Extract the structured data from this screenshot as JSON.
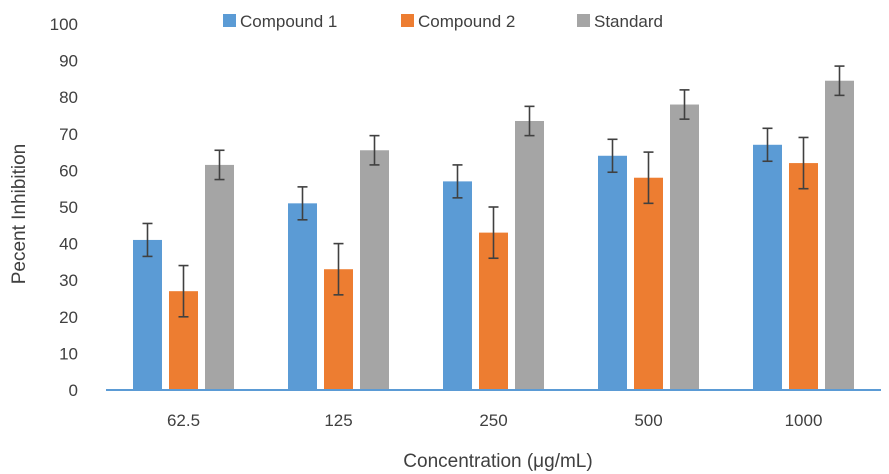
{
  "chart_data": {
    "type": "bar",
    "title": "",
    "xlabel": "Concentration (μg/mL)",
    "ylabel": "Pecent Inhibition",
    "categories": [
      "62.5",
      "125",
      "250",
      "500",
      "1000"
    ],
    "ylim": [
      0,
      100
    ],
    "yticks": [
      0,
      10,
      20,
      30,
      40,
      50,
      60,
      70,
      80,
      90,
      100
    ],
    "grid": false,
    "legend_position": "top",
    "error_bars": true,
    "series": [
      {
        "name": "Compound 1",
        "color": "#5B9BD5",
        "values": [
          41,
          51,
          57,
          64,
          67
        ],
        "errors": [
          4.5,
          4.5,
          4.5,
          4.5,
          4.5
        ]
      },
      {
        "name": "Compound 2",
        "color": "#ED7D31",
        "values": [
          27,
          33,
          43,
          58,
          62
        ],
        "errors": [
          7,
          7,
          7,
          7,
          7
        ]
      },
      {
        "name": "Standard",
        "color": "#A5A5A5",
        "values": [
          61.5,
          65.5,
          73.5,
          78,
          84.5
        ],
        "errors": [
          4,
          4,
          4,
          4,
          4
        ]
      }
    ]
  }
}
